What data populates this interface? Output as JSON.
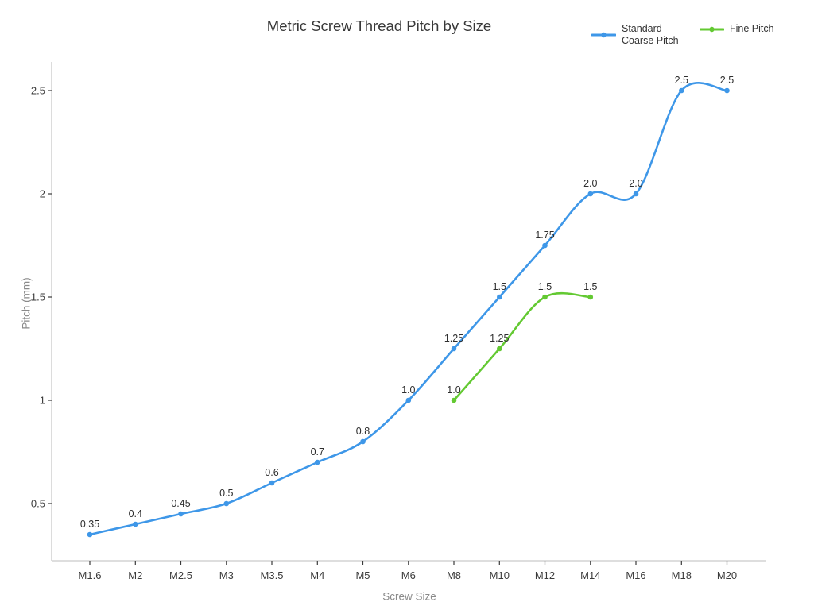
{
  "header": {
    "title": "Metric Screw Thread Pitch by Size"
  },
  "chart_data": {
    "type": "line",
    "line_shape": "spline",
    "title": "Metric Screw Thread Pitch by Size",
    "xlabel": "Screw Size",
    "ylabel": "Pitch (mm)",
    "categories": [
      "M1.6",
      "M2",
      "M2.5",
      "M3",
      "M3.5",
      "M4",
      "M5",
      "M6",
      "M8",
      "M10",
      "M12",
      "M14",
      "M16",
      "M18",
      "M20"
    ],
    "y_ticks": [
      0.5,
      1,
      1.5,
      2,
      2.5
    ],
    "y_tick_labels": [
      "0.5",
      "1",
      "1.5",
      "2",
      "2.5"
    ],
    "ylim": [
      0.22,
      2.64
    ],
    "grid": false,
    "legend_position": "top-right",
    "series": [
      {
        "name": "Standard Coarse Pitch",
        "color": "#3e97e8",
        "start_index": 0,
        "values": [
          0.35,
          0.4,
          0.45,
          0.5,
          0.6,
          0.7,
          0.8,
          1.0,
          1.25,
          1.5,
          1.75,
          2.0,
          2.0,
          2.5,
          2.5
        ],
        "labels": [
          "0.35",
          "0.4",
          "0.45",
          "0.5",
          "0.6",
          "0.7",
          "0.8",
          "1.0",
          "1.25",
          "1.5",
          "1.75",
          "2.0",
          "2.0",
          "2.5",
          "2.5"
        ]
      },
      {
        "name": "Fine Pitch",
        "color": "#63c932",
        "start_index": 8,
        "values": [
          1.0,
          1.25,
          1.5,
          1.5
        ],
        "labels": [
          "1.0",
          "1.25",
          "1.5",
          "1.5"
        ]
      }
    ],
    "style": {
      "spine_color": "#c9c9c9",
      "tick_color": "#3b3b3b",
      "tick_label_color": "#3b3b3b",
      "data_label_color": "#2e2e2e"
    }
  }
}
